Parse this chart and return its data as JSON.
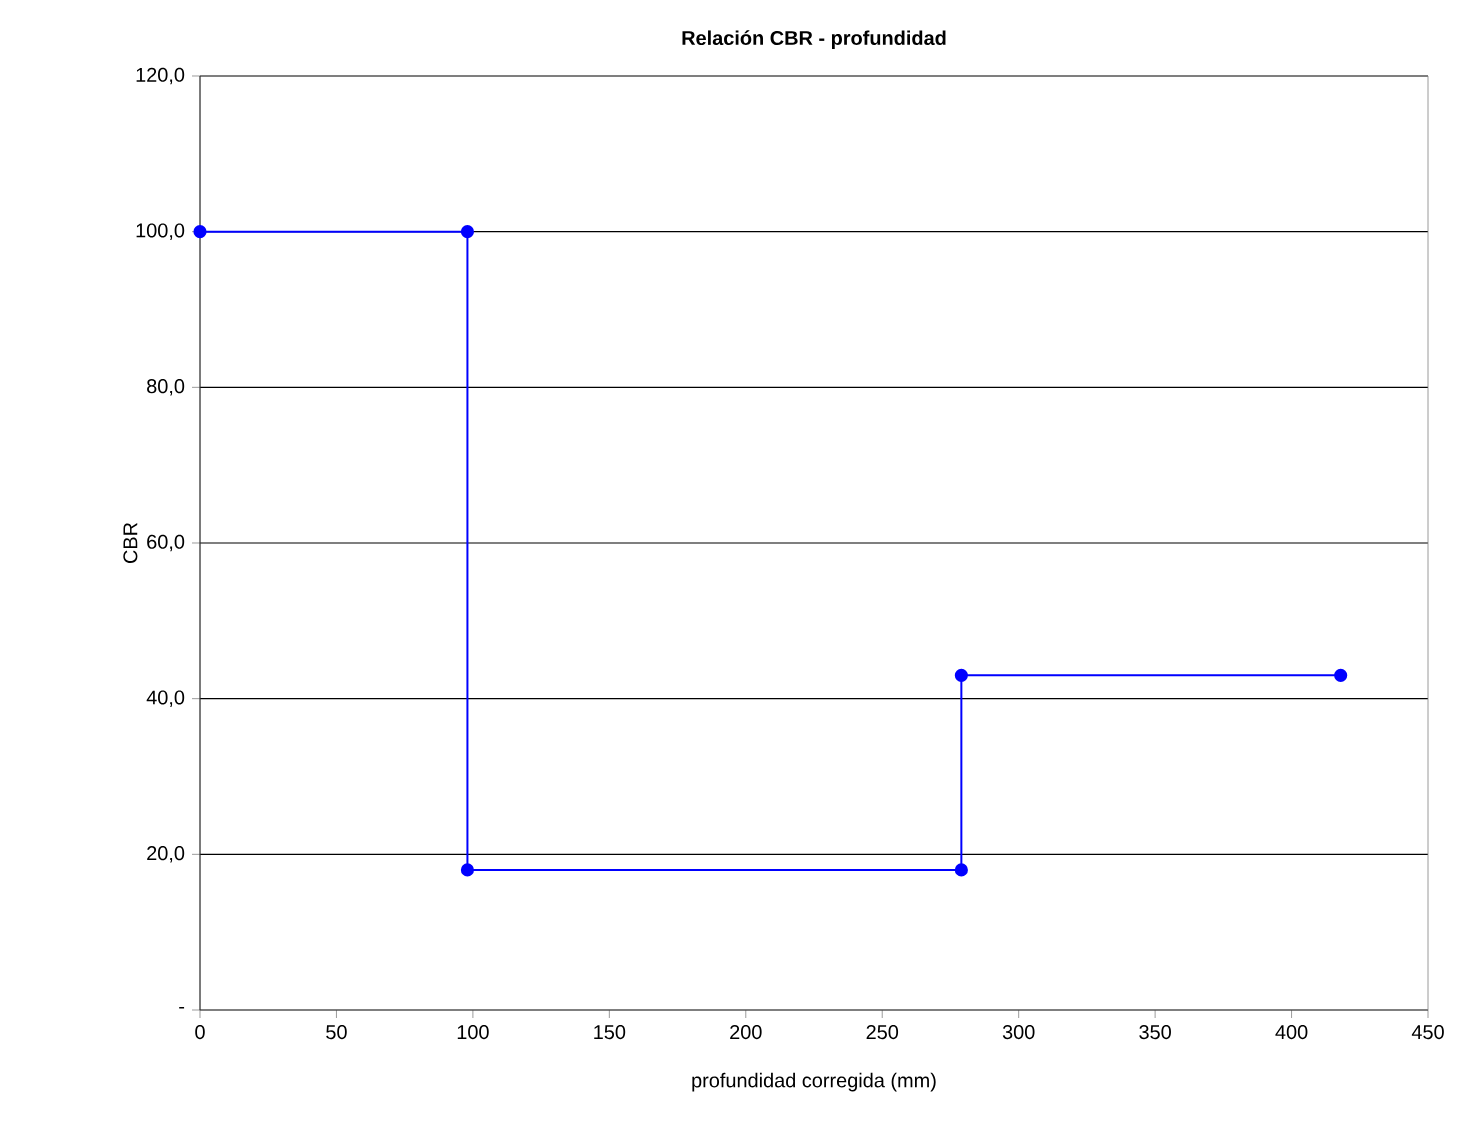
{
  "chart_data": {
    "type": "line",
    "title": "Relación CBR - profundidad",
    "xlabel": "profundidad corregida (mm)",
    "ylabel": "CBR",
    "x": [
      0,
      98,
      98,
      279,
      279,
      418
    ],
    "series": [
      {
        "color": "#0000ff",
        "values": [
          100,
          100,
          18,
          18,
          43,
          43
        ]
      }
    ],
    "xlim": [
      0,
      450
    ],
    "xticks": [
      0,
      50,
      100,
      150,
      200,
      250,
      300,
      350,
      400,
      450
    ],
    "ylim": [
      0,
      120
    ],
    "yticks": [
      {
        "value": 0,
        "label": "-"
      },
      {
        "value": 20,
        "label": "20,0"
      },
      {
        "value": 40,
        "label": "40,0"
      },
      {
        "value": 60,
        "label": "60,0"
      },
      {
        "value": 80,
        "label": "80,0"
      },
      {
        "value": 100,
        "label": "100,0"
      },
      {
        "value": 120,
        "label": "120,0"
      }
    ],
    "grid": "y",
    "marker": "circle",
    "line_style": "solid"
  }
}
